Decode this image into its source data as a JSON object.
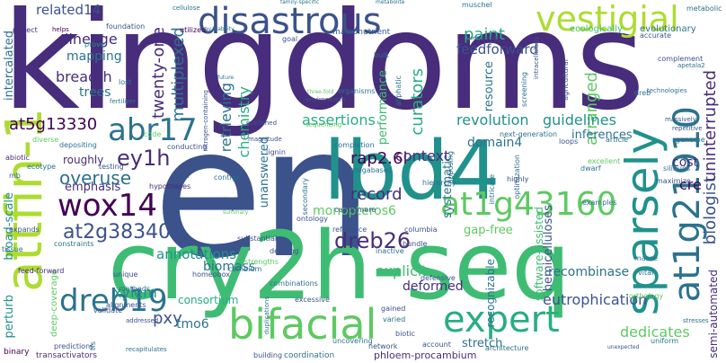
{
  "palette": {
    "dark_purple": "#440154",
    "indigo": "#472d7b",
    "blue": "#3b528b",
    "slate": "#2c728e",
    "teal": "#21918c",
    "green_teal": "#28ae80",
    "green": "#3fbc73",
    "light_green": "#5ec962",
    "lime": "#addc30",
    "yellow": "#fde725"
  },
  "words": {
    "kingdoms": "kingdoms",
    "en": "en",
    "cry2h_seq": "cry2h-seq",
    "lbd4": "lbd4",
    "attfin_1": "attfin-1",
    "disastrous": "disastrous",
    "vestigial": "vestigial",
    "abr17": "abr17",
    "wox14": "wox14",
    "bifacial": "bifacial",
    "dreb19": "dreb19",
    "sparsely": "sparsely",
    "at1g21910": "at1g21910",
    "at1g43160": "at1g43160",
    "expert": "expert",
    "ey1h": "ey1h",
    "overuse": "overuse",
    "at2g38340": "at2g38340",
    "at5g13330": "at5g13330",
    "dreb26": "dreb26",
    "rap2_6l": "rap2.6l",
    "record": "record",
    "biologist": "biologist",
    "uninterrupted": "uninterrupted",
    "paint": "paint",
    "feedforward": "feedforward",
    "related14": "related14",
    "lineage": "lineage",
    "mapping": "mapping",
    "breadth": "breadth",
    "trees": "trees",
    "twenty_one": "twenty-one",
    "multiplexed": "multiplexed",
    "chemistry": "chemistry",
    "retrieving": "retrieving",
    "curators": "curators",
    "arranged": "arranged",
    "assertions": "assertions",
    "revolution": "revolution",
    "guidelines": "guidelines",
    "domain4": "domain4",
    "inferences": "inferences",
    "context": "context",
    "systematic": "systematic",
    "monopteros6": "monopteros6",
    "explicit": "explicit",
    "annotations": "annotations",
    "biomass": "biomass",
    "xylem": "xylem",
    "pxy": "pxy",
    "tmo6": "tmo6",
    "deformed": "deformed",
    "eutrophication": "eutrophication",
    "dedicates": "dedicates",
    "hemicelluloses": "hemicelluloses",
    "recombinase": "recombinase",
    "gap_free": "gap-free",
    "cost": "cost",
    "cre": "cre",
    "emphasis": "emphasis",
    "shape": "shape",
    "unanswered": "unanswered",
    "performance": "performance",
    "resource": "resource",
    "intercalated": "intercalated",
    "broad_scale": "broad-scale",
    "perturb": "perturb",
    "semi_automated": "semi-automated",
    "software_assisted": "software-assisted",
    "recognizable": "recognizable",
    "consortium": "consortium",
    "stretch": "stretch",
    "roughly": "roughly",
    "project": "project",
    "foundation": "foundation",
    "macronutrient": "macronutrient",
    "ecologically": "ecologically",
    "evolutionary": "evolutionary",
    "accurate": "accurate",
    "complement": "complement",
    "metabolic": "metabolic",
    "muschel": "muschel",
    "family_specific": "family-specific",
    "metabolite": "metabolite",
    "cellulose": "cellulose",
    "utilized": "utilized",
    "availability": "availability",
    "goal": "goal",
    "prove": "prove",
    "helps": "helps",
    "lost": "lost",
    "fertilizer": "fertilizer",
    "nitrogen_containing": "nitrogen-containing",
    "organisms": "organisms",
    "environment": "environment",
    "three_fold": "three-fold",
    "aliphatic": "aliphatic",
    "screening": "screening",
    "intracellularly": "intracellularly",
    "agricultural": "agricultural",
    "sequencing": "sequencing",
    "published": "published",
    "magnitude": "magnitude",
    "lignin": "lignin",
    "depositing": "depositing",
    "conducting": "conducting",
    "testing": "testing",
    "code": "code",
    "diverse": "diverse",
    "abiotic": "abiotic",
    "ecotype": "ecotype",
    "nacl": "nacl",
    "contigs": "contigs",
    "hypotheses": "hypotheses",
    "completion": "completion",
    "megabases": "megabases",
    "next_generation": "next-generation",
    "article": "article",
    "genome": "genome",
    "dwarf": "dwarf",
    "siliques": "siliques",
    "maximize": "maximize",
    "excellent": "excellent",
    "examples": "examples",
    "optimization": "optimization",
    "intricate": "intricate",
    "highly": "highly",
    "opposing": "opposing",
    "hierarchy": "hierarchy",
    "centromere": "centromere",
    "ontology": "ontology",
    "secondary": "secondary",
    "reference": "reference",
    "inactive": "inactive",
    "bundle": "bundle",
    "columbia": "columbia",
    "defensive": "defensive",
    "masse": "masse",
    "vital": "vital",
    "orthology": "orthology",
    "substantial": "substantial",
    "defining": "defining",
    "cambium": "cambium",
    "strengths": "strengths",
    "combinations": "combinations",
    "homeobox": "homeobox",
    "alignments": "alignments",
    "methods": "methods",
    "unique": "unique",
    "excessive": "excessive",
    "gained": "gained",
    "varied": "varied",
    "biotic": "biotic",
    "account": "account",
    "network": "network",
    "uncovering": "uncovering",
    "phloem_procambium": "phloem-procambium",
    "architecture": "architecture",
    "coordination": "coordination",
    "building": "building",
    "transactivators": "transactivators",
    "binary": "binary",
    "predictions": "predictions",
    "validate": "validate",
    "deep_coverage": "deep-coverage",
    "feed_forward": "feed-forward",
    "tissue": "tissue",
    "expands": "expands",
    "constraints": "constraints",
    "addressed": "addressed",
    "uniform": "uniform",
    "unexpected": "unexpected",
    "recapitulates": "recapitulates",
    "massively": "massively",
    "repetitive": "repetitive",
    "dreb": "dreb",
    "technologies": "technologies",
    "apetala2": "apetala2",
    "comprising": "comprising",
    "bulk": "bulk",
    "future": "future",
    "stresses": "stresses",
    "duplications": "duplications",
    "loops": "loops",
    "mb": "mb",
    "tfs": "tfs",
    "summary": "summary"
  }
}
